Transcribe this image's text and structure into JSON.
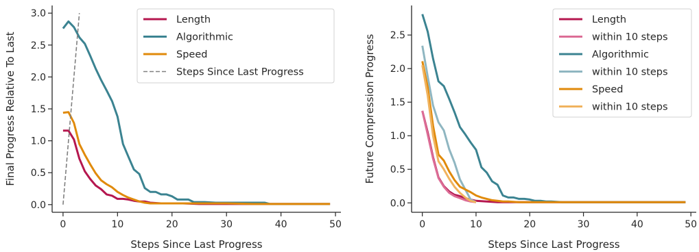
{
  "chart_data": [
    {
      "type": "line",
      "xlabel": "Steps Since Last Progress",
      "ylabel": "Final Progress Relative To Last",
      "xlim": [
        -2,
        51
      ],
      "ylim": [
        -0.12,
        3.12
      ],
      "xticks": [
        0,
        10,
        20,
        30,
        40,
        50
      ],
      "yticks": [
        0.0,
        0.5,
        1.0,
        1.5,
        2.0,
        2.5,
        3.0
      ],
      "xtick_labels": [
        "0",
        "10",
        "20",
        "30",
        "40",
        "50"
      ],
      "ytick_labels": [
        "0.0",
        "0.5",
        "1.0",
        "1.5",
        "2.0",
        "2.5",
        "3.0"
      ],
      "grid": false,
      "legend_position": "top-right",
      "series": [
        {
          "name": "Length",
          "color": "#b5174f",
          "style": "solid",
          "x": [
            0,
            1,
            2,
            3,
            4,
            5,
            6,
            7,
            8,
            9,
            10,
            11,
            12,
            13,
            14,
            15,
            16,
            18,
            20,
            22,
            25,
            30,
            35,
            40,
            45,
            49
          ],
          "y": [
            1.16,
            1.16,
            1.02,
            0.72,
            0.52,
            0.4,
            0.3,
            0.24,
            0.16,
            0.14,
            0.09,
            0.09,
            0.08,
            0.06,
            0.05,
            0.05,
            0.03,
            0.02,
            0.02,
            0.02,
            0.01,
            0.01,
            0.01,
            0.01,
            0.01,
            0.01
          ]
        },
        {
          "name": "Algorithmic",
          "color": "#3b8391",
          "style": "solid",
          "x": [
            0,
            1,
            2,
            3,
            4,
            5,
            6,
            7,
            8,
            9,
            10,
            11,
            12,
            13,
            14,
            15,
            16,
            17,
            18,
            19,
            20,
            21,
            22,
            23,
            24,
            26,
            28,
            30,
            33,
            36,
            37,
            38,
            40,
            45,
            49
          ],
          "y": [
            2.76,
            2.87,
            2.78,
            2.62,
            2.52,
            2.33,
            2.13,
            1.95,
            1.79,
            1.62,
            1.38,
            0.95,
            0.75,
            0.55,
            0.48,
            0.26,
            0.2,
            0.2,
            0.16,
            0.16,
            0.13,
            0.08,
            0.08,
            0.08,
            0.04,
            0.04,
            0.03,
            0.03,
            0.03,
            0.03,
            0.03,
            0.01,
            0.01,
            0.01,
            0.01
          ]
        },
        {
          "name": "Speed",
          "color": "#e08a0b",
          "style": "solid",
          "x": [
            0,
            1,
            2,
            3,
            4,
            5,
            6,
            7,
            8,
            9,
            10,
            11,
            12,
            13,
            14,
            15,
            16,
            18,
            20,
            25,
            30,
            35,
            40,
            45,
            49
          ],
          "y": [
            1.44,
            1.45,
            1.28,
            0.95,
            0.78,
            0.63,
            0.49,
            0.38,
            0.32,
            0.27,
            0.2,
            0.15,
            0.11,
            0.08,
            0.05,
            0.03,
            0.02,
            0.02,
            0.02,
            0.02,
            0.02,
            0.01,
            0.01,
            0.01,
            0.01
          ]
        },
        {
          "name": "Steps Since Last Progress",
          "color": "#808080",
          "style": "dashed",
          "x": [
            0,
            3
          ],
          "y": [
            0,
            3
          ]
        }
      ]
    },
    {
      "type": "line",
      "xlabel": "Steps Since Last Progress",
      "ylabel": "Future Compression Progress",
      "xlim": [
        -2,
        51
      ],
      "ylim": [
        -0.14,
        2.94
      ],
      "xticks": [
        0,
        10,
        20,
        30,
        40,
        50
      ],
      "yticks": [
        0.0,
        0.5,
        1.0,
        1.5,
        2.0,
        2.5
      ],
      "xtick_labels": [
        "0",
        "10",
        "20",
        "30",
        "40",
        "50"
      ],
      "ytick_labels": [
        "0.0",
        "0.5",
        "1.0",
        "1.5",
        "2.0",
        "2.5"
      ],
      "grid": false,
      "legend_position": "top-right",
      "series": [
        {
          "name": "Length",
          "color": "#b5174f",
          "style": "solid",
          "x": [
            0,
            1,
            2,
            3,
            4,
            5,
            6,
            7,
            8,
            9,
            10,
            12,
            14,
            16,
            20,
            30,
            40,
            49
          ],
          "y": [
            1.37,
            1.05,
            0.68,
            0.38,
            0.25,
            0.17,
            0.12,
            0.1,
            0.07,
            0.05,
            0.03,
            0.02,
            0.01,
            0.01,
            0.01,
            0.01,
            0.01,
            0.01
          ]
        },
        {
          "name": "within 10 steps",
          "color": "#dc6d96",
          "style": "solid",
          "x": [
            0,
            1,
            2,
            3,
            4,
            5,
            6,
            7,
            8,
            9,
            10
          ],
          "y": [
            1.37,
            1.02,
            0.66,
            0.37,
            0.24,
            0.15,
            0.1,
            0.07,
            0.04,
            0.02,
            0.01
          ]
        },
        {
          "name": "Algorithmic",
          "color": "#3b8391",
          "style": "solid",
          "x": [
            0,
            1,
            2,
            3,
            4,
            5,
            6,
            7,
            8,
            9,
            10,
            11,
            12,
            13,
            14,
            15,
            16,
            17,
            18,
            19,
            20,
            21,
            22,
            23,
            24,
            26,
            28,
            30,
            35,
            40,
            45,
            49
          ],
          "y": [
            2.81,
            2.55,
            2.15,
            1.81,
            1.74,
            1.55,
            1.35,
            1.13,
            1.02,
            0.9,
            0.79,
            0.53,
            0.45,
            0.32,
            0.27,
            0.11,
            0.08,
            0.08,
            0.06,
            0.06,
            0.05,
            0.03,
            0.03,
            0.02,
            0.02,
            0.01,
            0.01,
            0.01,
            0.01,
            0.01,
            0.01,
            0.01
          ]
        },
        {
          "name": "within 10 steps",
          "color": "#8fb6c1",
          "style": "solid",
          "x": [
            0,
            1,
            2,
            3,
            4,
            5,
            6,
            7,
            8,
            9,
            10
          ],
          "y": [
            2.34,
            1.88,
            1.45,
            1.2,
            1.08,
            0.8,
            0.6,
            0.35,
            0.2,
            0.05,
            0.01
          ]
        },
        {
          "name": "Speed",
          "color": "#e08a0b",
          "style": "solid",
          "x": [
            0,
            1,
            2,
            3,
            4,
            5,
            6,
            7,
            8,
            9,
            10,
            11,
            12,
            13,
            14,
            15,
            16,
            18,
            20,
            25,
            30,
            40,
            49
          ],
          "y": [
            2.11,
            1.72,
            1.15,
            0.72,
            0.63,
            0.47,
            0.34,
            0.24,
            0.2,
            0.16,
            0.11,
            0.08,
            0.06,
            0.04,
            0.03,
            0.02,
            0.02,
            0.01,
            0.01,
            0.01,
            0.01,
            0.01,
            0.01
          ]
        },
        {
          "name": "within 10 steps",
          "color": "#f0b35e",
          "style": "solid",
          "x": [
            0,
            1,
            2,
            3,
            4,
            5,
            6,
            7,
            8,
            9,
            10
          ],
          "y": [
            2.05,
            1.6,
            1.0,
            0.62,
            0.5,
            0.36,
            0.24,
            0.15,
            0.08,
            0.03,
            0.01
          ]
        }
      ]
    }
  ]
}
